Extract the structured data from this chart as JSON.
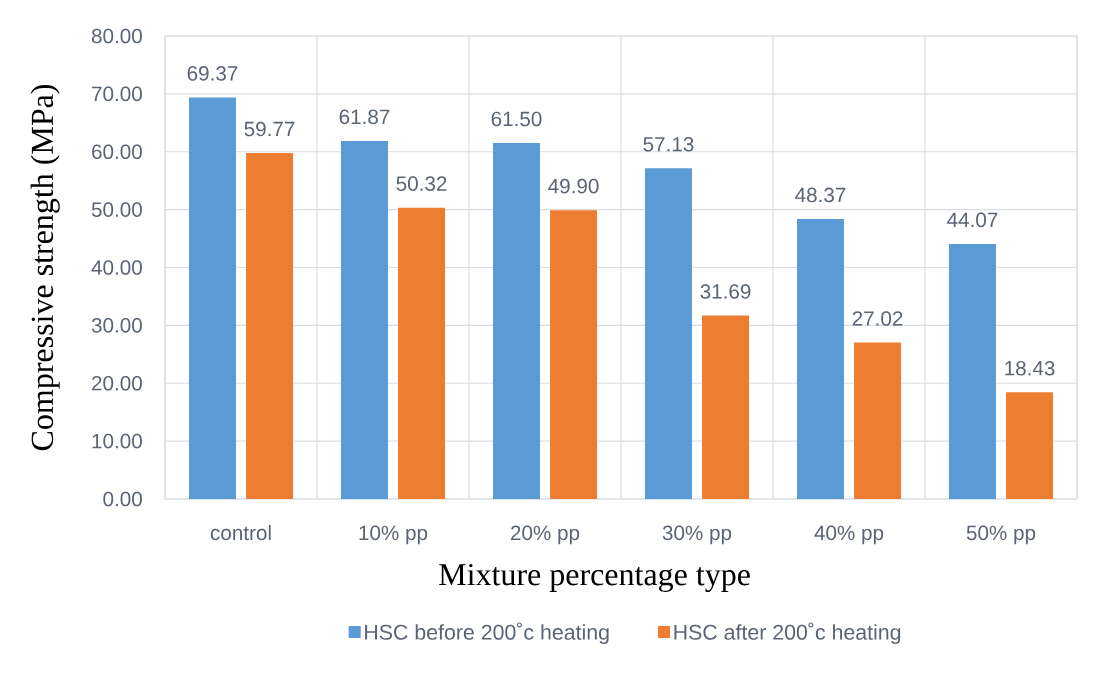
{
  "chart_data": {
    "type": "bar",
    "xlabel": "Mixture percentage type",
    "ylabel": "Compressive strength (MPa)",
    "categories": [
      "control",
      "10% pp",
      "20% pp",
      "30% pp",
      "40% pp",
      "50% pp"
    ],
    "series": [
      {
        "name": "HSC before 200˚c heating",
        "color": "#5b9bd5",
        "values": [
          69.37,
          61.87,
          61.5,
          57.13,
          48.37,
          44.07
        ],
        "value_labels": [
          "69.37",
          "61.87",
          "61.50",
          "57.13",
          "48.37",
          "44.07"
        ]
      },
      {
        "name": "HSC after 200˚c heating",
        "color": "#ed7d31",
        "values": [
          59.77,
          50.32,
          49.9,
          31.69,
          27.02,
          18.43
        ],
        "value_labels": [
          "59.77",
          "50.32",
          "49.90",
          "31.69",
          "27.02",
          "18.43"
        ]
      }
    ],
    "ylim": [
      0,
      80
    ],
    "yticks": [
      {
        "value": 0,
        "label": "0.00"
      },
      {
        "value": 10,
        "label": "10.00"
      },
      {
        "value": 20,
        "label": "20.00"
      },
      {
        "value": 30,
        "label": "30.00"
      },
      {
        "value": 40,
        "label": "40.00"
      },
      {
        "value": 50,
        "label": "50.00"
      },
      {
        "value": 60,
        "label": "60.00"
      },
      {
        "value": 70,
        "label": "70.00"
      },
      {
        "value": 80,
        "label": "80.00"
      }
    ],
    "grid": true,
    "legend": "bottom"
  }
}
